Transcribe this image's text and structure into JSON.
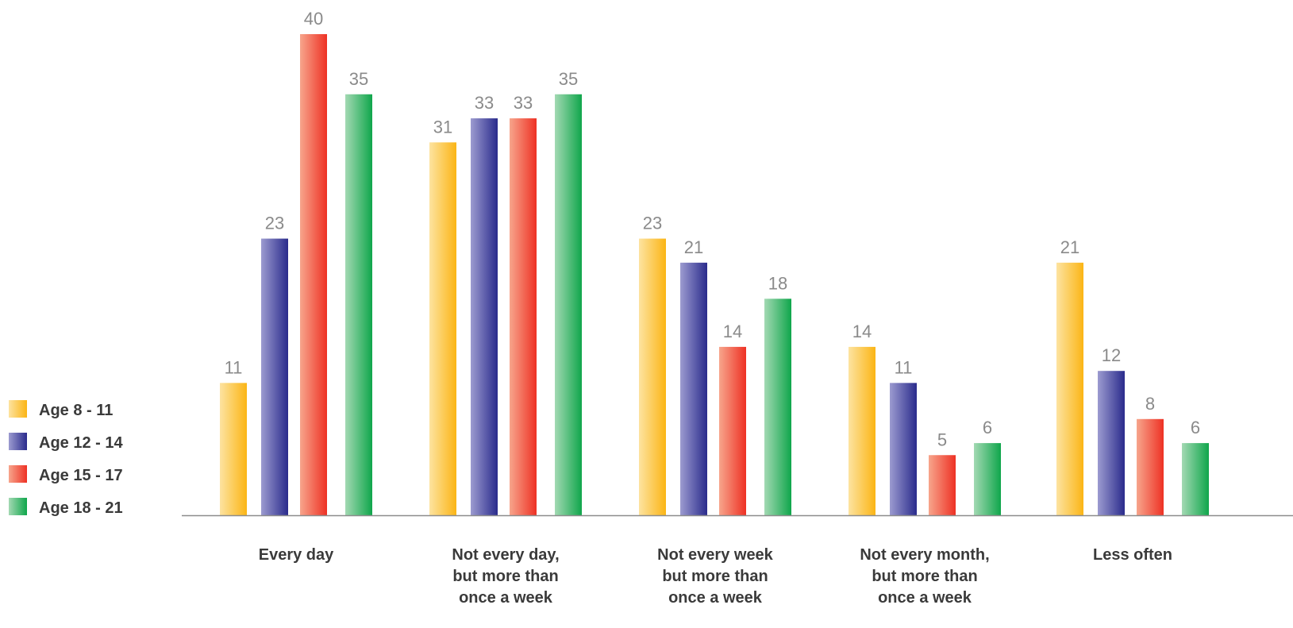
{
  "chart_data": {
    "type": "bar",
    "categories": [
      [
        "Every day"
      ],
      [
        "Not every day,",
        "but more than",
        "once a week"
      ],
      [
        "Not every week",
        "but more than",
        "once a week"
      ],
      [
        "Not every month,",
        "but more than",
        "once a week"
      ],
      [
        "Less often"
      ]
    ],
    "series": [
      {
        "name": "Age   8 - 11",
        "values": [
          11,
          31,
          23,
          14,
          21
        ],
        "color_light": "#fde3a0",
        "color_dark": "#fbb515"
      },
      {
        "name": "Age 12 - 14",
        "values": [
          23,
          33,
          21,
          11,
          12
        ],
        "color_light": "#9c9bd0",
        "color_dark": "#2a2b8c"
      },
      {
        "name": "Age 15 - 17",
        "values": [
          40,
          33,
          14,
          5,
          8
        ],
        "color_light": "#f7a58c",
        "color_dark": "#ee3124"
      },
      {
        "name": "Age 18 - 21",
        "values": [
          35,
          35,
          18,
          6,
          6
        ],
        "color_light": "#a3d9b3",
        "color_dark": "#0fa64b"
      }
    ],
    "title": "",
    "xlabel": "",
    "ylabel": "",
    "ylim": [
      0,
      40
    ],
    "grid": false,
    "legend_position": "left",
    "axis_color": "#8c8c8c",
    "value_label_color": "#8a8a8a"
  }
}
